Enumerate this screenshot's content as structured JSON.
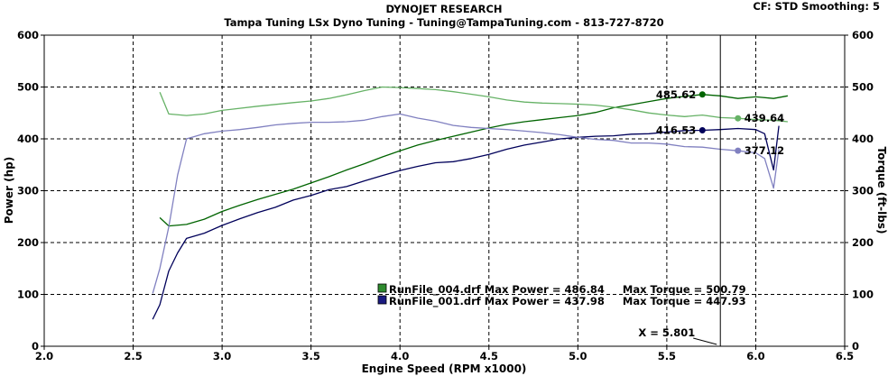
{
  "header": {
    "title": "DYNOJET RESEARCH",
    "subtitle": "Tampa Tuning LSx Dyno Tuning - Tuning@TampaTuning.com - 813-727-8720",
    "settings": "CF: STD  Smoothing: 5"
  },
  "chart_data": {
    "type": "line",
    "title": "DYNOJET RESEARCH",
    "subtitle": "Tampa Tuning LSx Dyno Tuning - Tuning@TampaTuning.com - 813-727-8720",
    "xlabel": "Engine Speed (RPM x1000)",
    "ylabel": "Power (hp)",
    "y2label": "Torque (ft-lbs)",
    "xlim": [
      2.0,
      6.5
    ],
    "ylim": [
      0,
      600
    ],
    "y2lim": [
      0,
      600
    ],
    "x_ticks": [
      "2.0",
      "2.5",
      "3.0",
      "3.5",
      "4.0",
      "4.5",
      "5.0",
      "5.5",
      "6.0",
      "6.5"
    ],
    "y_ticks": [
      "0",
      "100",
      "200",
      "300",
      "400",
      "500",
      "600"
    ],
    "grid": true,
    "cursor": {
      "x": 5.801,
      "label": "X = 5.801"
    },
    "series": [
      {
        "key": "run004_power",
        "color": "#006400",
        "points": [
          [
            2.65,
            248
          ],
          [
            2.7,
            232
          ],
          [
            2.8,
            235
          ],
          [
            2.9,
            245
          ],
          [
            3.0,
            260
          ],
          [
            3.1,
            272
          ],
          [
            3.2,
            283
          ],
          [
            3.3,
            293
          ],
          [
            3.4,
            303
          ],
          [
            3.5,
            315
          ],
          [
            3.6,
            327
          ],
          [
            3.7,
            340
          ],
          [
            3.8,
            352
          ],
          [
            3.9,
            365
          ],
          [
            4.0,
            377
          ],
          [
            4.1,
            388
          ],
          [
            4.2,
            397
          ],
          [
            4.3,
            405
          ],
          [
            4.4,
            413
          ],
          [
            4.5,
            421
          ],
          [
            4.6,
            428
          ],
          [
            4.7,
            433
          ],
          [
            4.8,
            437
          ],
          [
            4.9,
            441
          ],
          [
            5.0,
            445
          ],
          [
            5.1,
            451
          ],
          [
            5.2,
            460
          ],
          [
            5.3,
            466
          ],
          [
            5.4,
            472
          ],
          [
            5.5,
            478
          ],
          [
            5.6,
            482
          ],
          [
            5.7,
            485.62
          ],
          [
            5.8,
            483
          ],
          [
            5.9,
            478
          ],
          [
            6.0,
            481
          ],
          [
            6.1,
            478
          ],
          [
            6.18,
            483
          ]
        ]
      },
      {
        "key": "run004_torque",
        "color": "#66b266",
        "points": [
          [
            2.65,
            490
          ],
          [
            2.7,
            448
          ],
          [
            2.8,
            445
          ],
          [
            2.9,
            448
          ],
          [
            3.0,
            455
          ],
          [
            3.2,
            463
          ],
          [
            3.4,
            470
          ],
          [
            3.5,
            473
          ],
          [
            3.6,
            478
          ],
          [
            3.7,
            485
          ],
          [
            3.8,
            493
          ],
          [
            3.9,
            500
          ],
          [
            4.0,
            499
          ],
          [
            4.1,
            497
          ],
          [
            4.2,
            495
          ],
          [
            4.3,
            491
          ],
          [
            4.4,
            486
          ],
          [
            4.5,
            481
          ],
          [
            4.6,
            475
          ],
          [
            4.7,
            471
          ],
          [
            4.8,
            469
          ],
          [
            4.9,
            468
          ],
          [
            5.0,
            467
          ],
          [
            5.1,
            465
          ],
          [
            5.2,
            461
          ],
          [
            5.3,
            456
          ],
          [
            5.4,
            450
          ],
          [
            5.5,
            446
          ],
          [
            5.6,
            443
          ],
          [
            5.7,
            446
          ],
          [
            5.8,
            441
          ],
          [
            5.9,
            439.64
          ],
          [
            6.0,
            437
          ],
          [
            6.1,
            436
          ],
          [
            6.18,
            433
          ]
        ]
      },
      {
        "key": "run001_power",
        "color": "#00005a",
        "points": [
          [
            2.61,
            52
          ],
          [
            2.65,
            80
          ],
          [
            2.7,
            145
          ],
          [
            2.75,
            180
          ],
          [
            2.8,
            208
          ],
          [
            2.9,
            218
          ],
          [
            3.0,
            233
          ],
          [
            3.1,
            246
          ],
          [
            3.2,
            258
          ],
          [
            3.3,
            268
          ],
          [
            3.4,
            282
          ],
          [
            3.5,
            291
          ],
          [
            3.6,
            302
          ],
          [
            3.7,
            308
          ],
          [
            3.8,
            319
          ],
          [
            3.9,
            329
          ],
          [
            4.0,
            339
          ],
          [
            4.1,
            347
          ],
          [
            4.2,
            354
          ],
          [
            4.3,
            356
          ],
          [
            4.4,
            362
          ],
          [
            4.5,
            370
          ],
          [
            4.6,
            380
          ],
          [
            4.7,
            388
          ],
          [
            4.8,
            394
          ],
          [
            4.9,
            400
          ],
          [
            5.0,
            403
          ],
          [
            5.1,
            405
          ],
          [
            5.2,
            406
          ],
          [
            5.3,
            409
          ],
          [
            5.4,
            410
          ],
          [
            5.5,
            413
          ],
          [
            5.6,
            416
          ],
          [
            5.7,
            416.53
          ],
          [
            5.8,
            418
          ],
          [
            5.9,
            420
          ],
          [
            6.0,
            418
          ],
          [
            6.05,
            410
          ],
          [
            6.1,
            340
          ],
          [
            6.13,
            425
          ]
        ]
      },
      {
        "key": "run001_torque",
        "color": "#8080c0",
        "points": [
          [
            2.61,
            102
          ],
          [
            2.65,
            150
          ],
          [
            2.7,
            230
          ],
          [
            2.75,
            330
          ],
          [
            2.8,
            400
          ],
          [
            2.9,
            410
          ],
          [
            3.0,
            415
          ],
          [
            3.1,
            418
          ],
          [
            3.2,
            422
          ],
          [
            3.3,
            427
          ],
          [
            3.4,
            430
          ],
          [
            3.5,
            432
          ],
          [
            3.6,
            432
          ],
          [
            3.7,
            433
          ],
          [
            3.8,
            436
          ],
          [
            3.9,
            443
          ],
          [
            4.0,
            447.93
          ],
          [
            4.1,
            440
          ],
          [
            4.2,
            434
          ],
          [
            4.3,
            426
          ],
          [
            4.4,
            422
          ],
          [
            4.5,
            420
          ],
          [
            4.6,
            418
          ],
          [
            4.7,
            415
          ],
          [
            4.8,
            412
          ],
          [
            4.9,
            408
          ],
          [
            5.0,
            403
          ],
          [
            5.1,
            399
          ],
          [
            5.2,
            397
          ],
          [
            5.3,
            392
          ],
          [
            5.4,
            392
          ],
          [
            5.5,
            390
          ],
          [
            5.6,
            385
          ],
          [
            5.7,
            384
          ],
          [
            5.8,
            380
          ],
          [
            5.9,
            377.12
          ],
          [
            6.0,
            373
          ],
          [
            6.05,
            362
          ],
          [
            6.1,
            305
          ],
          [
            6.13,
            380
          ]
        ]
      }
    ],
    "markers": [
      {
        "x": 5.7,
        "y": 485.62,
        "label": "485.62",
        "color": "#006400",
        "anchor": "end"
      },
      {
        "x": 5.9,
        "y": 439.64,
        "label": "439.64",
        "color": "#66b266",
        "anchor": "start"
      },
      {
        "x": 5.7,
        "y": 416.53,
        "label": "416.53",
        "color": "#00005a",
        "anchor": "end"
      },
      {
        "x": 5.9,
        "y": 377.12,
        "label": "377.12",
        "color": "#8080c0",
        "anchor": "start"
      }
    ],
    "legend": {
      "placement": "bottom-center",
      "entries": [
        {
          "text": "RunFile_004.drf Max Power = 486.84     Max Torque = 500.79",
          "color": "#2e8b2e"
        },
        {
          "text": "RunFile_001.drf Max Power = 437.98     Max Torque = 447.93",
          "color": "#1a1a80"
        }
      ]
    }
  }
}
